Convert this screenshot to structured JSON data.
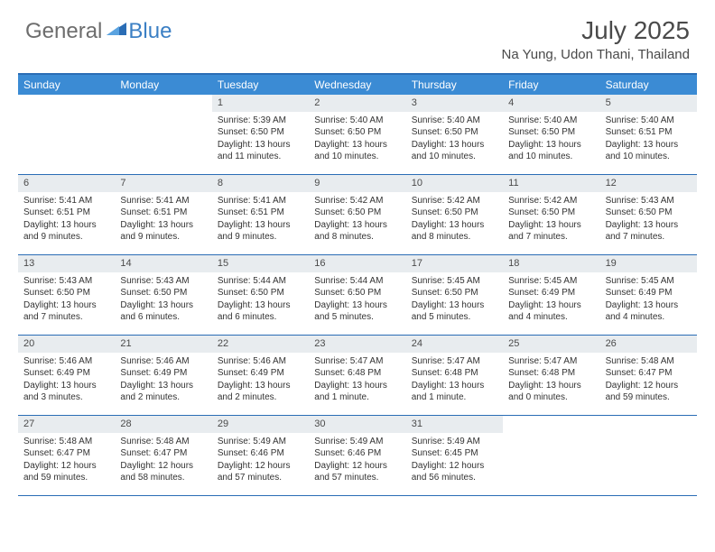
{
  "logo": {
    "part1": "General",
    "part2": "Blue"
  },
  "title": "July 2025",
  "location": "Na Yung, Udon Thani, Thailand",
  "colors": {
    "header_bar": "#3b8bd4",
    "border": "#2a6db5",
    "daynum_bg": "#e8ecef",
    "text": "#333333",
    "logo_gray": "#6d6d6d",
    "logo_blue": "#3b7fc4"
  },
  "weekdays": [
    "Sunday",
    "Monday",
    "Tuesday",
    "Wednesday",
    "Thursday",
    "Friday",
    "Saturday"
  ],
  "weeks": [
    [
      {
        "day": "",
        "sunrise": "",
        "sunset": "",
        "daylight": ""
      },
      {
        "day": "",
        "sunrise": "",
        "sunset": "",
        "daylight": ""
      },
      {
        "day": "1",
        "sunrise": "Sunrise: 5:39 AM",
        "sunset": "Sunset: 6:50 PM",
        "daylight": "Daylight: 13 hours and 11 minutes."
      },
      {
        "day": "2",
        "sunrise": "Sunrise: 5:40 AM",
        "sunset": "Sunset: 6:50 PM",
        "daylight": "Daylight: 13 hours and 10 minutes."
      },
      {
        "day": "3",
        "sunrise": "Sunrise: 5:40 AM",
        "sunset": "Sunset: 6:50 PM",
        "daylight": "Daylight: 13 hours and 10 minutes."
      },
      {
        "day": "4",
        "sunrise": "Sunrise: 5:40 AM",
        "sunset": "Sunset: 6:50 PM",
        "daylight": "Daylight: 13 hours and 10 minutes."
      },
      {
        "day": "5",
        "sunrise": "Sunrise: 5:40 AM",
        "sunset": "Sunset: 6:51 PM",
        "daylight": "Daylight: 13 hours and 10 minutes."
      }
    ],
    [
      {
        "day": "6",
        "sunrise": "Sunrise: 5:41 AM",
        "sunset": "Sunset: 6:51 PM",
        "daylight": "Daylight: 13 hours and 9 minutes."
      },
      {
        "day": "7",
        "sunrise": "Sunrise: 5:41 AM",
        "sunset": "Sunset: 6:51 PM",
        "daylight": "Daylight: 13 hours and 9 minutes."
      },
      {
        "day": "8",
        "sunrise": "Sunrise: 5:41 AM",
        "sunset": "Sunset: 6:51 PM",
        "daylight": "Daylight: 13 hours and 9 minutes."
      },
      {
        "day": "9",
        "sunrise": "Sunrise: 5:42 AM",
        "sunset": "Sunset: 6:50 PM",
        "daylight": "Daylight: 13 hours and 8 minutes."
      },
      {
        "day": "10",
        "sunrise": "Sunrise: 5:42 AM",
        "sunset": "Sunset: 6:50 PM",
        "daylight": "Daylight: 13 hours and 8 minutes."
      },
      {
        "day": "11",
        "sunrise": "Sunrise: 5:42 AM",
        "sunset": "Sunset: 6:50 PM",
        "daylight": "Daylight: 13 hours and 7 minutes."
      },
      {
        "day": "12",
        "sunrise": "Sunrise: 5:43 AM",
        "sunset": "Sunset: 6:50 PM",
        "daylight": "Daylight: 13 hours and 7 minutes."
      }
    ],
    [
      {
        "day": "13",
        "sunrise": "Sunrise: 5:43 AM",
        "sunset": "Sunset: 6:50 PM",
        "daylight": "Daylight: 13 hours and 7 minutes."
      },
      {
        "day": "14",
        "sunrise": "Sunrise: 5:43 AM",
        "sunset": "Sunset: 6:50 PM",
        "daylight": "Daylight: 13 hours and 6 minutes."
      },
      {
        "day": "15",
        "sunrise": "Sunrise: 5:44 AM",
        "sunset": "Sunset: 6:50 PM",
        "daylight": "Daylight: 13 hours and 6 minutes."
      },
      {
        "day": "16",
        "sunrise": "Sunrise: 5:44 AM",
        "sunset": "Sunset: 6:50 PM",
        "daylight": "Daylight: 13 hours and 5 minutes."
      },
      {
        "day": "17",
        "sunrise": "Sunrise: 5:45 AM",
        "sunset": "Sunset: 6:50 PM",
        "daylight": "Daylight: 13 hours and 5 minutes."
      },
      {
        "day": "18",
        "sunrise": "Sunrise: 5:45 AM",
        "sunset": "Sunset: 6:49 PM",
        "daylight": "Daylight: 13 hours and 4 minutes."
      },
      {
        "day": "19",
        "sunrise": "Sunrise: 5:45 AM",
        "sunset": "Sunset: 6:49 PM",
        "daylight": "Daylight: 13 hours and 4 minutes."
      }
    ],
    [
      {
        "day": "20",
        "sunrise": "Sunrise: 5:46 AM",
        "sunset": "Sunset: 6:49 PM",
        "daylight": "Daylight: 13 hours and 3 minutes."
      },
      {
        "day": "21",
        "sunrise": "Sunrise: 5:46 AM",
        "sunset": "Sunset: 6:49 PM",
        "daylight": "Daylight: 13 hours and 2 minutes."
      },
      {
        "day": "22",
        "sunrise": "Sunrise: 5:46 AM",
        "sunset": "Sunset: 6:49 PM",
        "daylight": "Daylight: 13 hours and 2 minutes."
      },
      {
        "day": "23",
        "sunrise": "Sunrise: 5:47 AM",
        "sunset": "Sunset: 6:48 PM",
        "daylight": "Daylight: 13 hours and 1 minute."
      },
      {
        "day": "24",
        "sunrise": "Sunrise: 5:47 AM",
        "sunset": "Sunset: 6:48 PM",
        "daylight": "Daylight: 13 hours and 1 minute."
      },
      {
        "day": "25",
        "sunrise": "Sunrise: 5:47 AM",
        "sunset": "Sunset: 6:48 PM",
        "daylight": "Daylight: 13 hours and 0 minutes."
      },
      {
        "day": "26",
        "sunrise": "Sunrise: 5:48 AM",
        "sunset": "Sunset: 6:47 PM",
        "daylight": "Daylight: 12 hours and 59 minutes."
      }
    ],
    [
      {
        "day": "27",
        "sunrise": "Sunrise: 5:48 AM",
        "sunset": "Sunset: 6:47 PM",
        "daylight": "Daylight: 12 hours and 59 minutes."
      },
      {
        "day": "28",
        "sunrise": "Sunrise: 5:48 AM",
        "sunset": "Sunset: 6:47 PM",
        "daylight": "Daylight: 12 hours and 58 minutes."
      },
      {
        "day": "29",
        "sunrise": "Sunrise: 5:49 AM",
        "sunset": "Sunset: 6:46 PM",
        "daylight": "Daylight: 12 hours and 57 minutes."
      },
      {
        "day": "30",
        "sunrise": "Sunrise: 5:49 AM",
        "sunset": "Sunset: 6:46 PM",
        "daylight": "Daylight: 12 hours and 57 minutes."
      },
      {
        "day": "31",
        "sunrise": "Sunrise: 5:49 AM",
        "sunset": "Sunset: 6:45 PM",
        "daylight": "Daylight: 12 hours and 56 minutes."
      },
      {
        "day": "",
        "sunrise": "",
        "sunset": "",
        "daylight": ""
      },
      {
        "day": "",
        "sunrise": "",
        "sunset": "",
        "daylight": ""
      }
    ]
  ]
}
